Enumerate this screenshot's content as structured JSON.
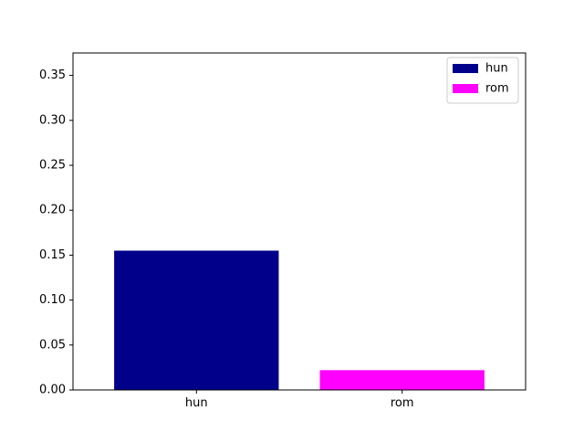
{
  "chart_data": {
    "type": "bar",
    "categories": [
      "hun",
      "rom"
    ],
    "values": [
      0.155,
      0.022
    ],
    "colors": [
      "#00008b",
      "#ff00ff"
    ],
    "ylim": [
      0,
      0.375
    ],
    "yticks": [
      0.0,
      0.05,
      0.1,
      0.15,
      0.2,
      0.25,
      0.3,
      0.35
    ],
    "ytick_labels": [
      "0.00",
      "0.05",
      "0.10",
      "0.15",
      "0.20",
      "0.25",
      "0.30",
      "0.35"
    ],
    "grid": false,
    "legend": {
      "placement": "top-right",
      "entries": [
        {
          "label": "hun",
          "color": "#00008b"
        },
        {
          "label": "rom",
          "color": "#ff00ff"
        }
      ]
    }
  }
}
